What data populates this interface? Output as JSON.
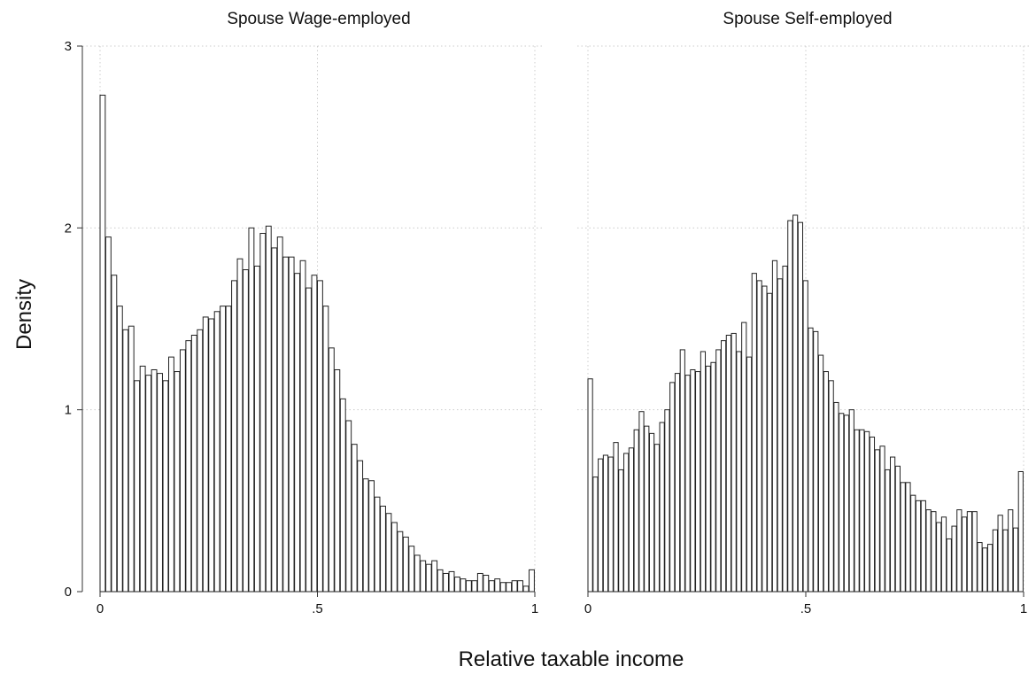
{
  "chart_data": {
    "type": "histogram",
    "ylabel": "Density",
    "xlabel": "Relative taxable income",
    "xlim": [
      0,
      1
    ],
    "ylim": [
      0,
      3
    ],
    "y_ticks": [
      0,
      1,
      2,
      3
    ],
    "y_tick_labels": [
      "0",
      "1",
      "2",
      "3"
    ],
    "x_ticks": [
      0,
      0.5,
      1
    ],
    "x_tick_labels": [
      "0",
      ".5",
      "1"
    ],
    "grid": true,
    "panels": [
      {
        "title": "Spouse Wage-employed",
        "values": [
          2.73,
          1.95,
          1.74,
          1.57,
          1.44,
          1.46,
          1.16,
          1.24,
          1.19,
          1.22,
          1.2,
          1.16,
          1.29,
          1.21,
          1.33,
          1.38,
          1.41,
          1.44,
          1.51,
          1.5,
          1.54,
          1.57,
          1.57,
          1.71,
          1.83,
          1.77,
          2.0,
          1.79,
          1.97,
          2.01,
          1.89,
          1.95,
          1.84,
          1.84,
          1.75,
          1.82,
          1.67,
          1.74,
          1.71,
          1.57,
          1.34,
          1.22,
          1.06,
          0.94,
          0.81,
          0.72,
          0.62,
          0.61,
          0.52,
          0.47,
          0.43,
          0.38,
          0.33,
          0.3,
          0.25,
          0.2,
          0.17,
          0.15,
          0.17,
          0.12,
          0.1,
          0.11,
          0.08,
          0.07,
          0.06,
          0.06,
          0.1,
          0.09,
          0.06,
          0.07,
          0.05,
          0.05,
          0.06,
          0.06,
          0.03,
          0.12
        ]
      },
      {
        "title": "Spouse Self-employed",
        "values": [
          1.17,
          0.63,
          0.73,
          0.75,
          0.74,
          0.82,
          0.67,
          0.76,
          0.79,
          0.89,
          0.99,
          0.91,
          0.87,
          0.81,
          0.93,
          1.0,
          1.15,
          1.2,
          1.33,
          1.19,
          1.22,
          1.21,
          1.32,
          1.24,
          1.26,
          1.33,
          1.38,
          1.41,
          1.42,
          1.32,
          1.48,
          1.29,
          1.75,
          1.71,
          1.68,
          1.64,
          1.82,
          1.72,
          1.79,
          2.04,
          2.07,
          2.03,
          1.71,
          1.45,
          1.43,
          1.3,
          1.21,
          1.16,
          1.04,
          0.98,
          0.97,
          1.0,
          0.89,
          0.89,
          0.88,
          0.85,
          0.78,
          0.8,
          0.67,
          0.74,
          0.69,
          0.6,
          0.6,
          0.53,
          0.5,
          0.5,
          0.45,
          0.44,
          0.38,
          0.41,
          0.29,
          0.36,
          0.45,
          0.41,
          0.44,
          0.44,
          0.27,
          0.24,
          0.26,
          0.34,
          0.42,
          0.34,
          0.45,
          0.35,
          0.66
        ]
      }
    ]
  }
}
